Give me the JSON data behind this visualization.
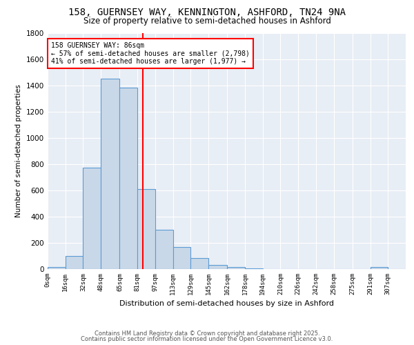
{
  "title1": "158, GUERNSEY WAY, KENNINGTON, ASHFORD, TN24 9NA",
  "title2": "Size of property relative to semi-detached houses in Ashford",
  "xlabel": "Distribution of semi-detached houses by size in Ashford",
  "ylabel": "Number of semi-detached properties",
  "bins": [
    0,
    16,
    32,
    48,
    65,
    81,
    97,
    113,
    129,
    145,
    162,
    178,
    194,
    210,
    226,
    242,
    258,
    275,
    291,
    307,
    323
  ],
  "counts": [
    15,
    100,
    775,
    1450,
    1380,
    610,
    300,
    170,
    85,
    30,
    18,
    5,
    0,
    0,
    0,
    0,
    0,
    0,
    15,
    0
  ],
  "bar_color": "#c8d8e8",
  "bar_edge_color": "#5b9bd5",
  "property_size": 86,
  "vline_color": "red",
  "annotation_text": "158 GUERNSEY WAY: 86sqm\n← 57% of semi-detached houses are smaller (2,798)\n41% of semi-detached houses are larger (1,977) →",
  "annotation_box_color": "white",
  "annotation_box_edge_color": "red",
  "ylim": [
    0,
    1800
  ],
  "yticks": [
    0,
    200,
    400,
    600,
    800,
    1000,
    1200,
    1400,
    1600,
    1800
  ],
  "footer1": "Contains HM Land Registry data © Crown copyright and database right 2025.",
  "footer2": "Contains public sector information licensed under the Open Government Licence v3.0.",
  "bg_color": "#e8eef5",
  "grid_color": "white"
}
